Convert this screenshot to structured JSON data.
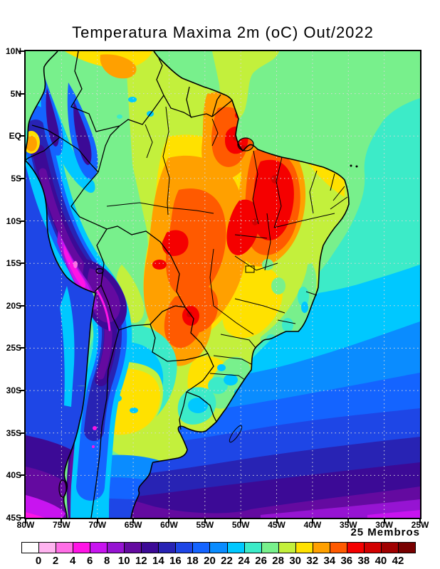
{
  "title": "Temperatura Maxima 2m (oC) Out/2022",
  "annotation": {
    "members": "25 Membros"
  },
  "axes": {
    "lat_ticks": [
      "10N",
      "5N",
      "EQ",
      "5S",
      "10S",
      "15S",
      "20S",
      "25S",
      "30S",
      "35S",
      "40S",
      "45S"
    ],
    "lon_ticks": [
      "80W",
      "75W",
      "70W",
      "65W",
      "60W",
      "55W",
      "50W",
      "45W",
      "40W",
      "35W",
      "30W",
      "25W"
    ]
  },
  "colorbar": {
    "tick_labels": [
      "0",
      "2",
      "4",
      "6",
      "8",
      "10",
      "12",
      "14",
      "16",
      "18",
      "20",
      "22",
      "24",
      "26",
      "28",
      "30",
      "32",
      "34",
      "36",
      "38",
      "40",
      "42"
    ],
    "colors": [
      "#FFFFFF",
      "#FFB4F0",
      "#FF6EE6",
      "#FF14E6",
      "#C814F0",
      "#9614D2",
      "#640AA0",
      "#3C0A96",
      "#2823B4",
      "#1E46E6",
      "#1464FF",
      "#0A8CFF",
      "#00C8FF",
      "#3CEBC8",
      "#78F08C",
      "#C3F03C",
      "#FFE100",
      "#FFA000",
      "#FF5A00",
      "#F50000",
      "#D20000",
      "#A00000",
      "#780000"
    ]
  },
  "chart_data": {
    "type": "heatmap",
    "title": "Temperatura Maxima 2m (oC) Out/2022",
    "variable": "Temperatura Maxima 2m",
    "units": "oC",
    "period": "Out/2022",
    "ensemble_members": 25,
    "lat_range": [
      "10N",
      "45S"
    ],
    "lon_range": [
      "80W",
      "25W"
    ],
    "scale": {
      "min": 0,
      "max": 42,
      "step": 2,
      "levels": [
        0,
        2,
        4,
        6,
        8,
        10,
        12,
        14,
        16,
        18,
        20,
        22,
        24,
        26,
        28,
        30,
        32,
        34,
        36,
        38,
        40,
        42
      ]
    }
  },
  "colors": {
    "frame": "#000000",
    "coastline": "#000000",
    "grid_dots": "#D8D8D8",
    "background": "#FFFFFF"
  }
}
